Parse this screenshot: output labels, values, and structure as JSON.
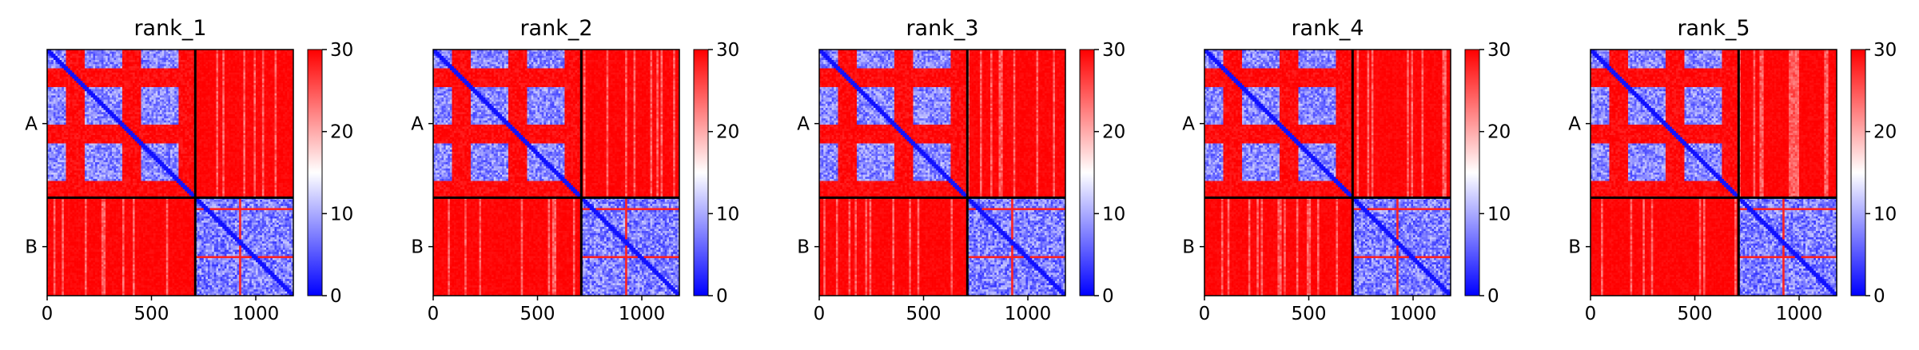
{
  "chart_data": {
    "type": "heatmap",
    "colormap": "bwr",
    "colors": {
      "low": "#0000ff",
      "mid": "#ffffff",
      "high": "#ff0000",
      "divider": "#000000"
    },
    "vmin": 0,
    "vmax": 30,
    "xlim": [
      0,
      1180
    ],
    "xticks": [
      0,
      500,
      1000
    ],
    "colorbar_ticks": [
      0,
      10,
      20,
      30
    ],
    "chain_breaks": [
      710
    ],
    "chain_labels": [
      "A",
      "B"
    ],
    "panels": [
      {
        "title": "rank_1"
      },
      {
        "title": "rank_2"
      },
      {
        "title": "rank_3"
      },
      {
        "title": "rank_4"
      },
      {
        "title": "rank_5"
      }
    ]
  }
}
